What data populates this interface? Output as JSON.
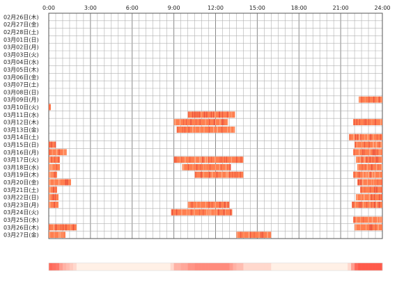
{
  "chart_data": {
    "type": "heatmap",
    "title": "",
    "xlabel": "",
    "ylabel": "",
    "x_range_hours": [
      0,
      24
    ],
    "x_ticks": [
      "0:00",
      "3:00",
      "6:00",
      "9:00",
      "12:00",
      "15:00",
      "18:00",
      "21:00",
      "24:00"
    ],
    "grid": true,
    "colors": {
      "background": "#ffffff",
      "grid_minor": "#b0b0b0",
      "grid_major": "#888888",
      "border": "#555555",
      "bar": "#ff7f50",
      "bar_dark": "#e84a3a",
      "bar_light": "#ffb08a",
      "summary_low": "#fff0e6",
      "summary_high": "#ff5a4a"
    },
    "rows": [
      {
        "label": "02月26日(木)",
        "segments": []
      },
      {
        "label": "02月27日(金)",
        "segments": []
      },
      {
        "label": "02月28日(土)",
        "segments": []
      },
      {
        "label": "03月01日(日)",
        "segments": []
      },
      {
        "label": "03月02日(月)",
        "segments": []
      },
      {
        "label": "03月03日(火)",
        "segments": []
      },
      {
        "label": "03月04日(水)",
        "segments": []
      },
      {
        "label": "03月05日(木)",
        "segments": []
      },
      {
        "label": "03月06日(金)",
        "segments": []
      },
      {
        "label": "03月07日(土)",
        "segments": []
      },
      {
        "label": "03月08日(日)",
        "segments": []
      },
      {
        "label": "03月09日(月)",
        "segments": [
          [
            22.3,
            24.0
          ]
        ]
      },
      {
        "label": "03月10日(火)",
        "segments": [
          [
            0.0,
            0.15
          ]
        ]
      },
      {
        "label": "03月11日(水)",
        "segments": [
          [
            10.0,
            13.4
          ]
        ]
      },
      {
        "label": "03月12日(木)",
        "segments": [
          [
            9.0,
            12.9
          ],
          [
            21.9,
            24.0
          ]
        ]
      },
      {
        "label": "03月13日(金)",
        "segments": [
          [
            9.2,
            13.4
          ]
        ]
      },
      {
        "label": "03月14日(土)",
        "segments": [
          [
            21.6,
            24.0
          ]
        ]
      },
      {
        "label": "03月15日(日)",
        "segments": [
          [
            0.0,
            0.5
          ],
          [
            22.0,
            24.0
          ]
        ]
      },
      {
        "label": "03月16日(月)",
        "segments": [
          [
            0.0,
            1.3
          ],
          [
            21.9,
            24.0
          ]
        ]
      },
      {
        "label": "03月17日(火)",
        "segments": [
          [
            0.0,
            0.8
          ],
          [
            9.0,
            14.0
          ],
          [
            22.1,
            24.0
          ]
        ]
      },
      {
        "label": "03月18日(水)",
        "segments": [
          [
            0.0,
            0.8
          ],
          [
            9.6,
            13.1
          ],
          [
            22.2,
            24.0
          ]
        ]
      },
      {
        "label": "03月19日(木)",
        "segments": [
          [
            0.0,
            0.6
          ],
          [
            10.5,
            14.0
          ],
          [
            21.9,
            24.0
          ]
        ]
      },
      {
        "label": "03月20日(金)",
        "segments": [
          [
            0.0,
            1.6
          ],
          [
            22.2,
            24.0
          ]
        ]
      },
      {
        "label": "03月21日(土)",
        "segments": [
          [
            0.0,
            0.6
          ],
          [
            22.4,
            24.0
          ]
        ]
      },
      {
        "label": "03月22日(日)",
        "segments": [
          [
            0.0,
            0.7
          ],
          [
            22.1,
            24.0
          ]
        ]
      },
      {
        "label": "03月23日(月)",
        "segments": [
          [
            0.0,
            0.7
          ],
          [
            10.0,
            13.0
          ],
          [
            21.8,
            24.0
          ]
        ]
      },
      {
        "label": "03月24日(火)",
        "segments": [
          [
            8.8,
            13.2
          ]
        ]
      },
      {
        "label": "03月25日(水)",
        "segments": [
          [
            21.9,
            24.0
          ]
        ]
      },
      {
        "label": "03月26日(木)",
        "segments": [
          [
            0.0,
            2.0
          ],
          [
            22.0,
            24.0
          ]
        ]
      },
      {
        "label": "03月27日(金)",
        "segments": [
          [
            0.0,
            1.2
          ],
          [
            13.5,
            16.0
          ]
        ]
      }
    ]
  }
}
